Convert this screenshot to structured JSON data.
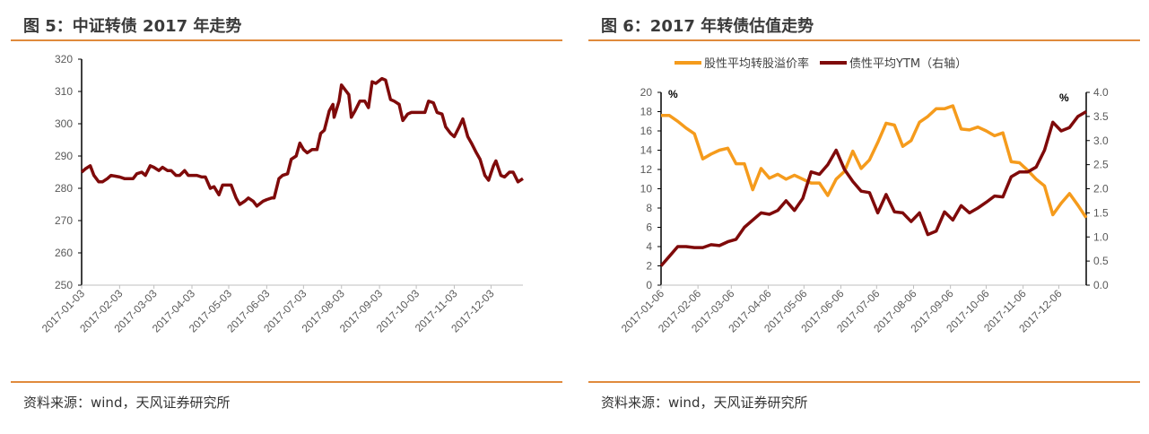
{
  "panels": [
    {
      "title": "图 5：中证转债 2017 年走势",
      "source": "资料来源：wind，天风证券研究所"
    },
    {
      "title": "图 6：2017 年转债估值走势",
      "source": "资料来源：wind，天风证券研究所"
    }
  ],
  "chart_data": [
    {
      "type": "line",
      "title": "",
      "ylim": [
        250,
        320
      ],
      "yticks": [
        "250",
        "260",
        "270",
        "280",
        "290",
        "300",
        "310",
        "320"
      ],
      "xlim": [
        "2017-01-03",
        "2017-12-29"
      ],
      "xticks": [
        "2017-01-03",
        "2017-02-03",
        "2017-03-03",
        "2017-04-03",
        "2017-05-03",
        "2017-06-03",
        "2017-07-03",
        "2017-08-03",
        "2017-09-03",
        "2017-10-03",
        "2017-11-03",
        "2017-12-03"
      ],
      "color": "#7f0a0a",
      "points": [
        [
          "2017-01-03",
          285
        ],
        [
          "2017-01-06",
          286
        ],
        [
          "2017-01-10",
          287
        ],
        [
          "2017-01-13",
          284
        ],
        [
          "2017-01-17",
          282
        ],
        [
          "2017-01-20",
          282
        ],
        [
          "2017-01-24",
          283
        ],
        [
          "2017-01-27",
          284
        ],
        [
          "2017-02-03",
          283.5
        ],
        [
          "2017-02-07",
          283
        ],
        [
          "2017-02-10",
          283
        ],
        [
          "2017-02-14",
          283
        ],
        [
          "2017-02-17",
          284.5
        ],
        [
          "2017-02-21",
          285
        ],
        [
          "2017-02-24",
          284
        ],
        [
          "2017-02-28",
          287
        ],
        [
          "2017-03-03",
          286.5
        ],
        [
          "2017-03-07",
          285.5
        ],
        [
          "2017-03-10",
          286.5
        ],
        [
          "2017-03-14",
          285.5
        ],
        [
          "2017-03-17",
          285.5
        ],
        [
          "2017-03-21",
          284
        ],
        [
          "2017-03-24",
          284
        ],
        [
          "2017-03-28",
          285.5
        ],
        [
          "2017-03-31",
          284
        ],
        [
          "2017-04-07",
          284
        ],
        [
          "2017-04-11",
          283.5
        ],
        [
          "2017-04-14",
          283.5
        ],
        [
          "2017-04-18",
          280
        ],
        [
          "2017-04-21",
          280.5
        ],
        [
          "2017-04-25",
          278
        ],
        [
          "2017-04-28",
          281
        ],
        [
          "2017-05-03",
          281
        ],
        [
          "2017-05-05",
          281
        ],
        [
          "2017-05-09",
          277
        ],
        [
          "2017-05-12",
          275
        ],
        [
          "2017-05-16",
          276
        ],
        [
          "2017-05-19",
          277
        ],
        [
          "2017-05-23",
          276
        ],
        [
          "2017-05-26",
          274.5
        ],
        [
          "2017-05-31",
          276
        ],
        [
          "2017-06-03",
          276.5
        ],
        [
          "2017-06-07",
          277
        ],
        [
          "2017-06-09",
          277
        ],
        [
          "2017-06-13",
          283
        ],
        [
          "2017-06-16",
          284
        ],
        [
          "2017-06-20",
          284.5
        ],
        [
          "2017-06-23",
          289
        ],
        [
          "2017-06-27",
          290
        ],
        [
          "2017-06-30",
          294
        ],
        [
          "2017-07-03",
          292
        ],
        [
          "2017-07-06",
          291
        ],
        [
          "2017-07-10",
          292
        ],
        [
          "2017-07-14",
          292
        ],
        [
          "2017-07-17",
          297
        ],
        [
          "2017-07-20",
          298
        ],
        [
          "2017-07-24",
          304
        ],
        [
          "2017-07-27",
          306
        ],
        [
          "2017-07-28",
          302
        ],
        [
          "2017-08-01",
          307
        ],
        [
          "2017-08-03",
          312
        ],
        [
          "2017-08-07",
          310
        ],
        [
          "2017-08-09",
          309
        ],
        [
          "2017-08-11",
          302
        ],
        [
          "2017-08-14",
          304
        ],
        [
          "2017-08-18",
          307
        ],
        [
          "2017-08-22",
          307
        ],
        [
          "2017-08-25",
          305
        ],
        [
          "2017-08-28",
          313
        ],
        [
          "2017-08-31",
          312.5
        ],
        [
          "2017-09-05",
          314
        ],
        [
          "2017-09-08",
          313.5
        ],
        [
          "2017-09-12",
          307.5
        ],
        [
          "2017-09-15",
          307
        ],
        [
          "2017-09-19",
          306
        ],
        [
          "2017-09-22",
          301
        ],
        [
          "2017-09-26",
          303
        ],
        [
          "2017-09-29",
          303.5
        ],
        [
          "2017-10-10",
          303.5
        ],
        [
          "2017-10-13",
          307
        ],
        [
          "2017-10-17",
          306.5
        ],
        [
          "2017-10-20",
          303.5
        ],
        [
          "2017-10-24",
          303
        ],
        [
          "2017-10-27",
          299
        ],
        [
          "2017-10-31",
          297
        ],
        [
          "2017-11-03",
          296
        ],
        [
          "2017-11-07",
          299
        ],
        [
          "2017-11-10",
          301.5
        ],
        [
          "2017-11-14",
          296
        ],
        [
          "2017-11-17",
          294
        ],
        [
          "2017-11-21",
          291
        ],
        [
          "2017-11-24",
          289
        ],
        [
          "2017-11-28",
          284
        ],
        [
          "2017-12-01",
          282.5
        ],
        [
          "2017-12-05",
          287
        ],
        [
          "2017-12-07",
          288.5
        ],
        [
          "2017-12-11",
          284
        ],
        [
          "2017-12-14",
          283.5
        ],
        [
          "2017-12-18",
          285
        ],
        [
          "2017-12-21",
          285
        ],
        [
          "2017-12-25",
          282
        ],
        [
          "2017-12-29",
          283
        ]
      ]
    },
    {
      "type": "line",
      "title": "",
      "ylim": [
        0,
        20
      ],
      "yticks": [
        "0",
        "2",
        "4",
        "6",
        "8",
        "10",
        "12",
        "14",
        "16",
        "18",
        "20"
      ],
      "y2lim": [
        0,
        4
      ],
      "y2ticks": [
        "0.0",
        "0.5",
        "1.0",
        "1.5",
        "2.0",
        "2.5",
        "3.0",
        "3.5",
        "4.0"
      ],
      "yunit": "%",
      "y2unit": "%",
      "xlim": [
        "2017-01-06",
        "2017-12-29"
      ],
      "xticks": [
        "2017-01-06",
        "2017-02-06",
        "2017-03-06",
        "2017-04-06",
        "2017-05-06",
        "2017-06-06",
        "2017-07-06",
        "2017-08-06",
        "2017-09-06",
        "2017-10-06",
        "2017-11-06",
        "2017-12-06"
      ],
      "legend_position": "top",
      "x": [
        "2017-01-06",
        "2017-01-13",
        "2017-01-20",
        "2017-01-27",
        "2017-02-03",
        "2017-02-10",
        "2017-02-17",
        "2017-02-24",
        "2017-03-03",
        "2017-03-10",
        "2017-03-17",
        "2017-03-24",
        "2017-03-31",
        "2017-04-07",
        "2017-04-14",
        "2017-04-21",
        "2017-04-28",
        "2017-05-05",
        "2017-05-12",
        "2017-05-19",
        "2017-05-26",
        "2017-06-02",
        "2017-06-09",
        "2017-06-16",
        "2017-06-23",
        "2017-06-30",
        "2017-07-07",
        "2017-07-14",
        "2017-07-21",
        "2017-07-28",
        "2017-08-04",
        "2017-08-11",
        "2017-08-18",
        "2017-08-25",
        "2017-09-01",
        "2017-09-08",
        "2017-09-15",
        "2017-09-22",
        "2017-09-29",
        "2017-10-06",
        "2017-10-13",
        "2017-10-20",
        "2017-10-27",
        "2017-11-03",
        "2017-11-10",
        "2017-11-17",
        "2017-11-24",
        "2017-12-01",
        "2017-12-08",
        "2017-12-15",
        "2017-12-22",
        "2017-12-29"
      ],
      "series": [
        {
          "name": "股性平均转股溢价率",
          "axis": "left",
          "color": "#f59b1c",
          "values": [
            17.6,
            17.6,
            17.0,
            16.3,
            15.7,
            13.1,
            13.6,
            14.0,
            14.2,
            12.6,
            12.6,
            9.9,
            12.1,
            11.1,
            11.5,
            11.0,
            11.4,
            11.0,
            10.6,
            10.6,
            9.3,
            11.0,
            11.8,
            13.9,
            12.1,
            13.0,
            14.8,
            16.8,
            16.6,
            14.4,
            15.0,
            16.9,
            17.5,
            18.3,
            18.3,
            18.6,
            16.2,
            16.1,
            16.4,
            16.0,
            15.5,
            15.8,
            12.8,
            12.7,
            11.9,
            11.0,
            10.3,
            7.3,
            8.5,
            9.5,
            8.3,
            7.0
          ]
        },
        {
          "name": "债性平均YTM（右轴）",
          "axis": "right",
          "color": "#7f0a0a",
          "values": [
            0.4,
            0.6,
            0.8,
            0.8,
            0.78,
            0.78,
            0.84,
            0.82,
            0.9,
            0.95,
            1.2,
            1.35,
            1.5,
            1.47,
            1.55,
            1.75,
            1.55,
            1.8,
            2.35,
            2.3,
            2.5,
            2.8,
            2.4,
            2.15,
            1.95,
            1.92,
            1.5,
            1.88,
            1.52,
            1.5,
            1.32,
            1.5,
            1.05,
            1.12,
            1.52,
            1.35,
            1.65,
            1.5,
            1.6,
            1.72,
            1.85,
            1.83,
            2.25,
            2.35,
            2.35,
            2.45,
            2.8,
            3.38,
            3.2,
            3.27,
            3.5,
            3.6
          ]
        }
      ]
    }
  ]
}
